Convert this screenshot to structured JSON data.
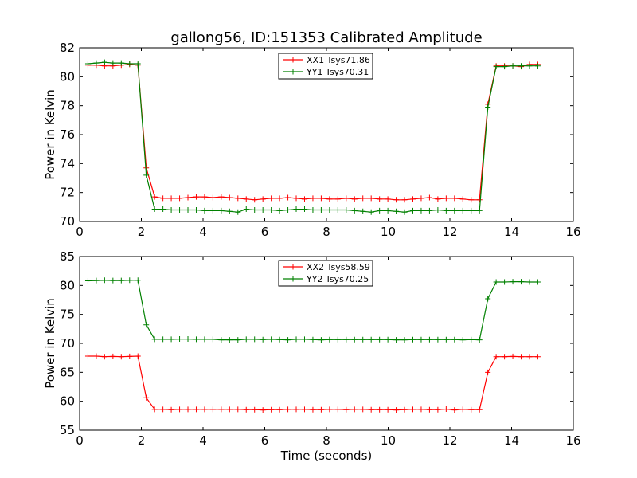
{
  "title": "gallong56, ID:151353 Calibrated Amplitude",
  "colors": {
    "red": "#ff0000",
    "green": "#008000",
    "axis": "#000000"
  },
  "chart_data": [
    {
      "type": "line",
      "title": "gallong56, ID:151353 Calibrated Amplitude",
      "xlabel": "",
      "ylabel": "Power in Kelvin",
      "xlim": [
        0,
        16
      ],
      "ylim": [
        70,
        82
      ],
      "xticks": [
        "0",
        "2",
        "4",
        "6",
        "8",
        "10",
        "12",
        "14",
        "16"
      ],
      "yticks": [
        "70",
        "72",
        "74",
        "76",
        "78",
        "80",
        "82"
      ],
      "legend_position": "top-center",
      "x": [
        0.27,
        0.54,
        0.81,
        1.08,
        1.35,
        1.62,
        1.89,
        2.16,
        2.43,
        2.7,
        2.97,
        3.24,
        3.51,
        3.78,
        4.05,
        4.32,
        4.59,
        4.86,
        5.13,
        5.4,
        5.67,
        5.94,
        6.21,
        6.48,
        6.75,
        7.02,
        7.29,
        7.56,
        7.83,
        8.1,
        8.37,
        8.64,
        8.91,
        9.18,
        9.45,
        9.72,
        9.99,
        10.26,
        10.53,
        10.8,
        11.07,
        11.34,
        11.61,
        11.88,
        12.15,
        12.42,
        12.69,
        12.96,
        13.23,
        13.5,
        13.77,
        14.04,
        14.31,
        14.58,
        14.85
      ],
      "series": [
        {
          "name": "XX1 Tsys71.86",
          "color": "#ff0000",
          "values": [
            80.8,
            80.8,
            80.75,
            80.75,
            80.8,
            80.85,
            80.8,
            73.7,
            71.7,
            71.6,
            71.6,
            71.6,
            71.65,
            71.7,
            71.7,
            71.65,
            71.7,
            71.65,
            71.6,
            71.55,
            71.5,
            71.55,
            71.6,
            71.6,
            71.65,
            71.6,
            71.55,
            71.6,
            71.6,
            71.55,
            71.55,
            71.6,
            71.55,
            71.6,
            71.6,
            71.55,
            71.55,
            71.5,
            71.5,
            71.55,
            71.6,
            71.65,
            71.55,
            71.6,
            71.6,
            71.55,
            71.5,
            71.5,
            78.1,
            80.75,
            80.75,
            80.75,
            80.7,
            80.85,
            80.85
          ]
        },
        {
          "name": "YY1 Tsys70.31",
          "color": "#008000",
          "values": [
            80.9,
            80.95,
            81.0,
            80.95,
            80.95,
            80.9,
            80.9,
            73.2,
            70.85,
            70.85,
            70.8,
            70.8,
            70.8,
            70.8,
            70.75,
            70.75,
            70.75,
            70.7,
            70.65,
            70.85,
            70.8,
            70.8,
            70.8,
            70.75,
            70.8,
            70.85,
            70.85,
            70.8,
            70.8,
            70.8,
            70.8,
            70.8,
            70.75,
            70.7,
            70.65,
            70.75,
            70.75,
            70.7,
            70.65,
            70.75,
            70.75,
            70.75,
            70.8,
            70.75,
            70.75,
            70.75,
            70.75,
            70.75,
            77.9,
            80.7,
            80.7,
            80.75,
            80.75,
            80.75,
            80.75
          ]
        }
      ]
    },
    {
      "type": "line",
      "title": "",
      "xlabel": "Time (seconds)",
      "ylabel": "Power in Kelvin",
      "xlim": [
        0,
        16
      ],
      "ylim": [
        55,
        85
      ],
      "xticks": [
        "0",
        "2",
        "4",
        "6",
        "8",
        "10",
        "12",
        "14",
        "16"
      ],
      "yticks": [
        "55",
        "60",
        "65",
        "70",
        "75",
        "80",
        "85"
      ],
      "legend_position": "top-center",
      "x": [
        0.27,
        0.54,
        0.81,
        1.08,
        1.35,
        1.62,
        1.89,
        2.16,
        2.43,
        2.7,
        2.97,
        3.24,
        3.51,
        3.78,
        4.05,
        4.32,
        4.59,
        4.86,
        5.13,
        5.4,
        5.67,
        5.94,
        6.21,
        6.48,
        6.75,
        7.02,
        7.29,
        7.56,
        7.83,
        8.1,
        8.37,
        8.64,
        8.91,
        9.18,
        9.45,
        9.72,
        9.99,
        10.26,
        10.53,
        10.8,
        11.07,
        11.34,
        11.61,
        11.88,
        12.15,
        12.42,
        12.69,
        12.96,
        13.23,
        13.5,
        13.77,
        14.04,
        14.31,
        14.58,
        14.85
      ],
      "series": [
        {
          "name": "XX2 Tsys58.59",
          "color": "#ff0000",
          "values": [
            67.8,
            67.8,
            67.7,
            67.75,
            67.7,
            67.75,
            67.8,
            60.6,
            58.6,
            58.6,
            58.55,
            58.6,
            58.6,
            58.6,
            58.6,
            58.6,
            58.6,
            58.6,
            58.6,
            58.55,
            58.55,
            58.5,
            58.55,
            58.55,
            58.6,
            58.6,
            58.6,
            58.55,
            58.55,
            58.6,
            58.6,
            58.55,
            58.6,
            58.6,
            58.55,
            58.55,
            58.55,
            58.5,
            58.55,
            58.6,
            58.6,
            58.55,
            58.55,
            58.65,
            58.5,
            58.6,
            58.55,
            58.55,
            65.0,
            67.7,
            67.7,
            67.75,
            67.7,
            67.7,
            67.7
          ]
        },
        {
          "name": "YY2 Tsys70.25",
          "color": "#008000",
          "values": [
            80.8,
            80.85,
            80.9,
            80.85,
            80.85,
            80.9,
            80.9,
            73.2,
            70.7,
            70.7,
            70.7,
            70.75,
            70.75,
            70.7,
            70.7,
            70.7,
            70.6,
            70.6,
            70.6,
            70.7,
            70.7,
            70.65,
            70.7,
            70.65,
            70.6,
            70.7,
            70.7,
            70.65,
            70.6,
            70.65,
            70.65,
            70.65,
            70.65,
            70.65,
            70.65,
            70.65,
            70.65,
            70.6,
            70.6,
            70.65,
            70.65,
            70.65,
            70.65,
            70.65,
            70.65,
            70.6,
            70.65,
            70.6,
            77.7,
            80.6,
            80.6,
            80.65,
            80.65,
            80.6,
            80.6
          ]
        }
      ]
    }
  ]
}
